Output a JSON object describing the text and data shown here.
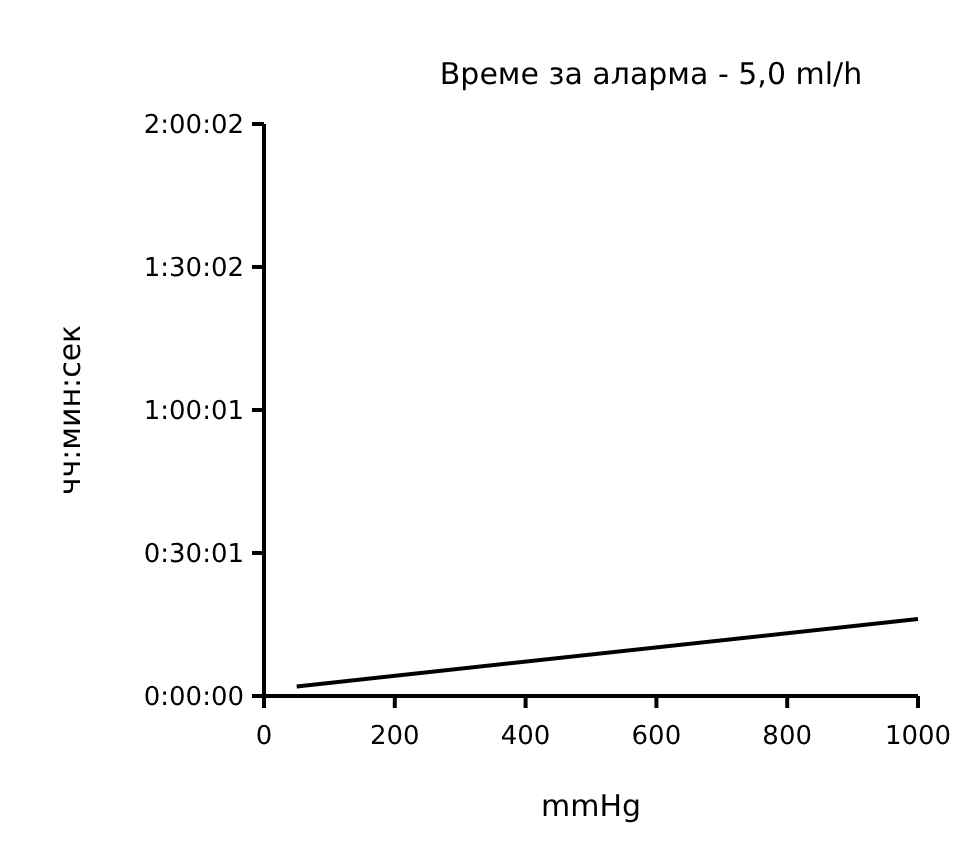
{
  "chart_data": {
    "type": "line",
    "title": "Време за аларма - 5,0 ml/h",
    "xlabel": "mmHg",
    "ylabel": "чч:мин:сек",
    "x": [
      50,
      1000
    ],
    "series": [
      {
        "color": "#000000",
        "values": [
          120,
          970
        ]
      }
    ],
    "xlim": [
      0,
      1000
    ],
    "xticks": [
      0,
      200,
      400,
      600,
      800,
      1000
    ],
    "ylim": [
      0,
      7202
    ],
    "yticks": [
      {
        "value": 0,
        "label": "0:00:00"
      },
      {
        "value": 1801,
        "label": "0:30:01"
      },
      {
        "value": 3601,
        "label": "1:00:01"
      },
      {
        "value": 5402,
        "label": "1:30:02"
      },
      {
        "value": 7202,
        "label": "2:00:02"
      }
    ],
    "marker": "none",
    "line_style": "solid"
  }
}
